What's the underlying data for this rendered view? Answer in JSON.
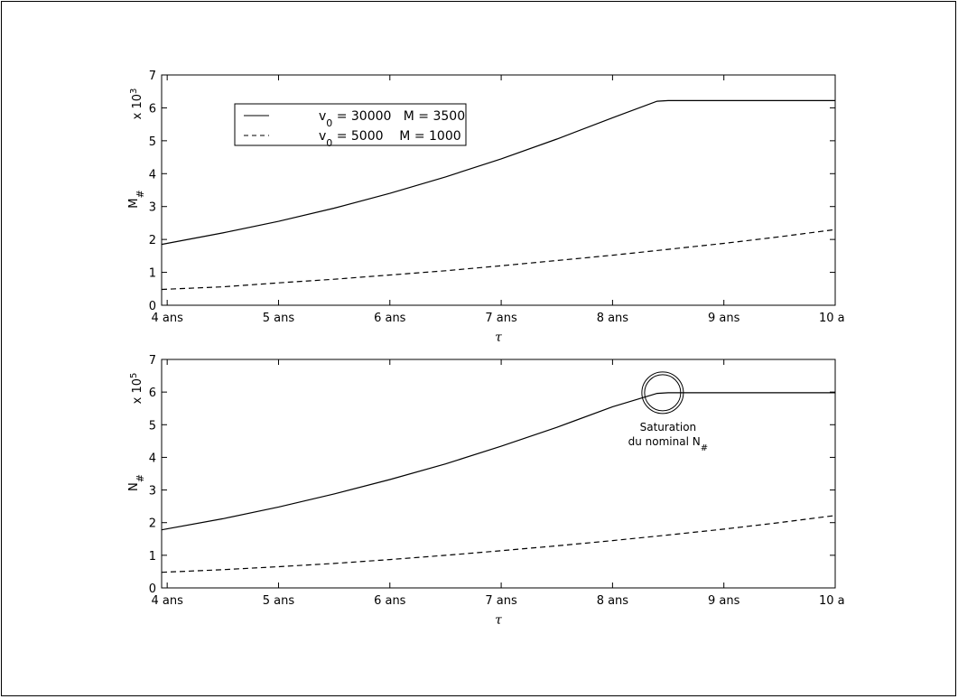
{
  "colors": {
    "line": "#000000",
    "background": "#ffffff"
  },
  "chart_data": [
    {
      "type": "line",
      "title": "",
      "xlabel": "τ",
      "ylabel": "M",
      "ylabel_subscript": "#",
      "scale_label": "x 10",
      "scale_exp": "3",
      "xlim": [
        3.95,
        10.0
      ],
      "ylim": [
        0,
        7
      ],
      "xticks": [
        {
          "value": 4,
          "label": "4 ans"
        },
        {
          "value": 5,
          "label": "5 ans"
        },
        {
          "value": 6,
          "label": "6 ans"
        },
        {
          "value": 7,
          "label": "7 ans"
        },
        {
          "value": 8,
          "label": "8 ans"
        },
        {
          "value": 9,
          "label": "9 ans"
        },
        {
          "value": 10,
          "label": "10 a"
        }
      ],
      "yticks": [
        0,
        1,
        2,
        3,
        4,
        5,
        6,
        7
      ],
      "grid": false,
      "legend": {
        "position": "top-left",
        "entries": [
          {
            "v_label": "v",
            "v_sub": "0",
            "text": " = 30000   M = 3500",
            "style": "solid"
          },
          {
            "v_label": "v",
            "v_sub": "0",
            "text": " = 5000    M = 1000",
            "style": "dashed"
          }
        ]
      },
      "series": [
        {
          "style": "solid",
          "x": [
            3.95,
            4.5,
            5.0,
            5.5,
            6.0,
            6.5,
            7.0,
            7.5,
            8.0,
            8.4,
            8.5,
            9.0,
            9.5,
            10.0
          ],
          "y": [
            1.85,
            2.2,
            2.55,
            2.95,
            3.4,
            3.9,
            4.45,
            5.05,
            5.7,
            6.2,
            6.22,
            6.22,
            6.22,
            6.22
          ]
        },
        {
          "style": "dashed",
          "x": [
            3.95,
            4.5,
            5.0,
            5.5,
            6.0,
            6.5,
            7.0,
            7.5,
            8.0,
            8.5,
            9.0,
            9.5,
            10.0
          ],
          "y": [
            0.48,
            0.56,
            0.68,
            0.79,
            0.92,
            1.05,
            1.2,
            1.36,
            1.52,
            1.7,
            1.88,
            2.08,
            2.3
          ]
        }
      ]
    },
    {
      "type": "line",
      "title": "",
      "xlabel": "τ",
      "ylabel": "N",
      "ylabel_subscript": "#",
      "scale_label": "x 10",
      "scale_exp": "5",
      "xlim": [
        3.95,
        10.0
      ],
      "ylim": [
        0,
        7
      ],
      "xticks": [
        {
          "value": 4,
          "label": "4 ans"
        },
        {
          "value": 5,
          "label": "5 ans"
        },
        {
          "value": 6,
          "label": "6 ans"
        },
        {
          "value": 7,
          "label": "7 ans"
        },
        {
          "value": 8,
          "label": "8 ans"
        },
        {
          "value": 9,
          "label": "9 ans"
        },
        {
          "value": 10,
          "label": "10 a"
        }
      ],
      "yticks": [
        0,
        1,
        2,
        3,
        4,
        5,
        6,
        7
      ],
      "grid": false,
      "annotation": {
        "line1": "Saturation",
        "line2": "du nominal N",
        "line2_sub": "#",
        "x": 8.45,
        "y": 5.98
      },
      "series": [
        {
          "style": "solid",
          "x": [
            3.95,
            4.5,
            5.0,
            5.5,
            6.0,
            6.5,
            7.0,
            7.5,
            8.0,
            8.4,
            8.5,
            9.0,
            9.5,
            10.0
          ],
          "y": [
            1.78,
            2.12,
            2.48,
            2.88,
            3.32,
            3.8,
            4.34,
            4.92,
            5.55,
            5.96,
            5.98,
            5.98,
            5.98,
            5.98
          ]
        },
        {
          "style": "dashed",
          "x": [
            3.95,
            4.5,
            5.0,
            5.5,
            6.0,
            6.5,
            7.0,
            7.5,
            8.0,
            8.5,
            9.0,
            9.5,
            10.0
          ],
          "y": [
            0.48,
            0.56,
            0.65,
            0.75,
            0.87,
            1.0,
            1.14,
            1.29,
            1.45,
            1.62,
            1.8,
            2.0,
            2.22
          ]
        }
      ]
    }
  ]
}
